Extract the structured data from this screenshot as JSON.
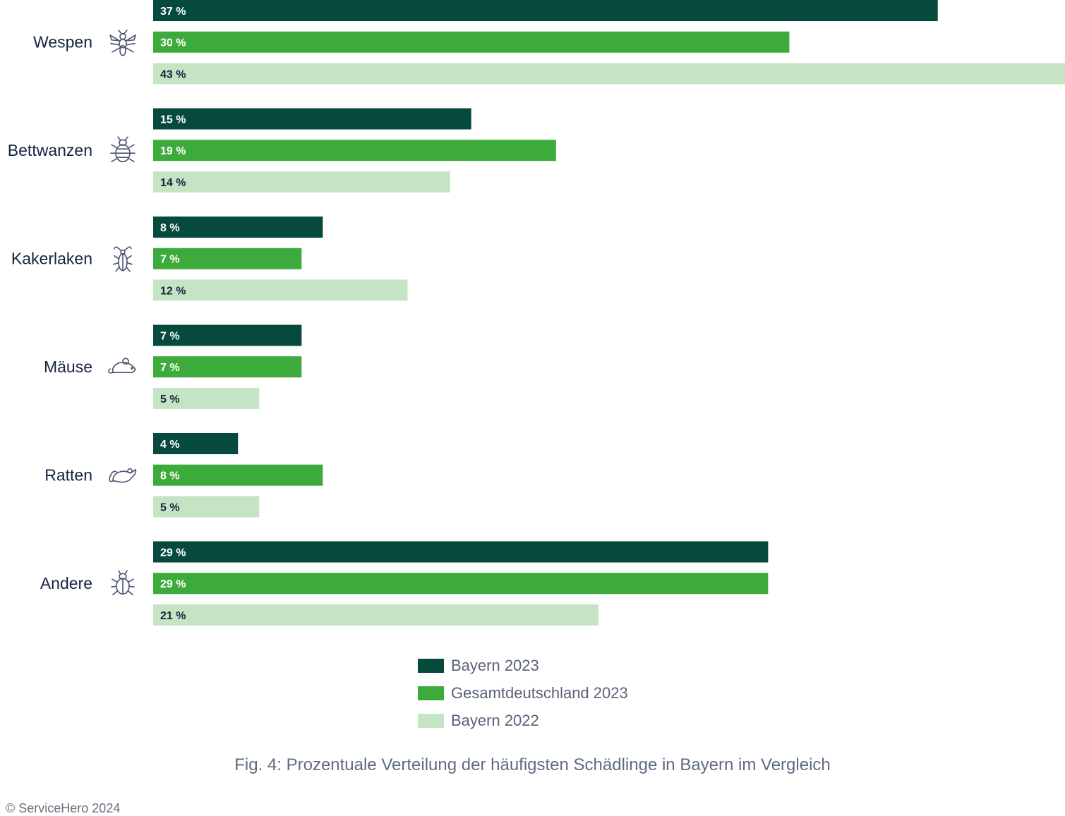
{
  "chart_data": {
    "type": "bar",
    "orientation": "horizontal",
    "categories": [
      "Wespen",
      "Bettwanzen",
      "Kakerlaken",
      "Mäuse",
      "Ratten",
      "Andere"
    ],
    "category_icons": [
      "wasp-icon",
      "bedbug-icon",
      "cockroach-icon",
      "mouse-icon",
      "rat-icon",
      "beetle-icon"
    ],
    "series": [
      {
        "name": "Bayern 2023",
        "color": "#054a3d",
        "values": [
          37,
          15,
          8,
          7,
          4,
          29
        ],
        "labels": [
          "37 %",
          "15 %",
          "8 %",
          "7 %",
          "4 %",
          "29 %"
        ]
      },
      {
        "name": "Gesamtdeutschland 2023",
        "color": "#3dab3b",
        "values": [
          30,
          19,
          7,
          7,
          8,
          29
        ],
        "labels": [
          "30 %",
          "19 %",
          "7 %",
          "7 %",
          "8 %",
          "29 %"
        ]
      },
      {
        "name": "Bayern 2022",
        "color": "#c5e4c4",
        "values": [
          43,
          14,
          12,
          5,
          5,
          21
        ],
        "labels": [
          "43 %",
          "14 %",
          "12 %",
          "5 %",
          "5 %",
          "21 %"
        ]
      }
    ],
    "xlim": [
      0,
      43
    ],
    "unit": "%",
    "grid": false,
    "legend_position": "bottom-center"
  },
  "caption": "Fig. 4: Prozentuale Verteilung der häufigsten Schädlinge in Bayern im Vergleich",
  "copyright": "© ServiceHero 2024"
}
